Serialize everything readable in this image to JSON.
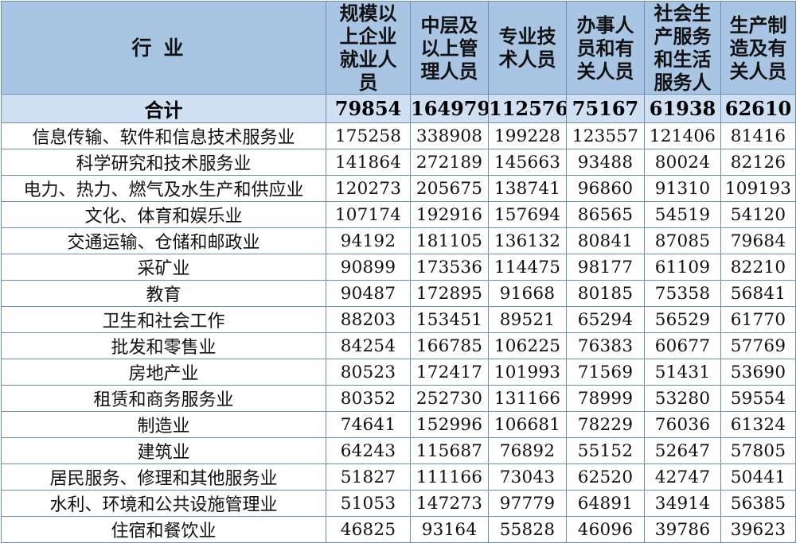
{
  "headers": [
    [
      "行",
      "业"
    ],
    [
      "规模以",
      "上企业",
      "就业人",
      "员"
    ],
    [
      "中层及",
      "以上管",
      "理人员"
    ],
    [
      "专业技",
      "术人员"
    ],
    [
      "办事人",
      "员和有",
      "关人员"
    ],
    [
      "社会生",
      "产服务",
      "和生活",
      "服务人"
    ],
    [
      "生产制",
      "造及有",
      "关人员"
    ]
  ],
  "total": [
    "合计",
    "79854",
    "164979",
    "112576",
    "75167",
    "61938",
    "62610"
  ],
  "rows": [
    [
      "信息传输、软件和信息技术服务业",
      "175258",
      "338908",
      "199228",
      "123557",
      "121406",
      "81416"
    ],
    [
      "科学研究和技术服务业",
      "141864",
      "272189",
      "145663",
      "93488",
      "80024",
      "82126"
    ],
    [
      "电力、热力、燃气及水生产和供应业",
      "120273",
      "205675",
      "138741",
      "96860",
      "91310",
      "109193"
    ],
    [
      "文化、体育和娱乐业",
      "107174",
      "192916",
      "157694",
      "86565",
      "54519",
      "54120"
    ],
    [
      "交通运输、仓储和邮政业",
      "94192",
      "181105",
      "136132",
      "80841",
      "87085",
      "79684"
    ],
    [
      "采矿业",
      "90899",
      "173536",
      "114475",
      "98177",
      "61109",
      "82210"
    ],
    [
      "教育",
      "90487",
      "172895",
      "91668",
      "80185",
      "75358",
      "56841"
    ],
    [
      "卫生和社会工作",
      "88203",
      "153451",
      "89521",
      "65294",
      "56529",
      "61770"
    ],
    [
      "批发和零售业",
      "84254",
      "166785",
      "106225",
      "76383",
      "60677",
      "57769"
    ],
    [
      "房地产业",
      "80523",
      "172417",
      "101993",
      "71569",
      "51431",
      "53690"
    ],
    [
      "租赁和商务服务业",
      "80352",
      "252730",
      "131166",
      "78999",
      "53280",
      "59554"
    ],
    [
      "制造业",
      "74641",
      "152996",
      "106681",
      "78229",
      "76036",
      "61324"
    ],
    [
      "建筑业",
      "64243",
      "115687",
      "76892",
      "55152",
      "52647",
      "57805"
    ],
    [
      "居民服务、修理和其他服务业",
      "51827",
      "111166",
      "73043",
      "62520",
      "42747",
      "50441"
    ],
    [
      "水利、环境和公共设施管理业",
      "51053",
      "147273",
      "97779",
      "64891",
      "34914",
      "56385"
    ],
    [
      "住宿和餐饮业",
      "46825",
      "93164",
      "55828",
      "46096",
      "39786",
      "39623"
    ]
  ]
}
